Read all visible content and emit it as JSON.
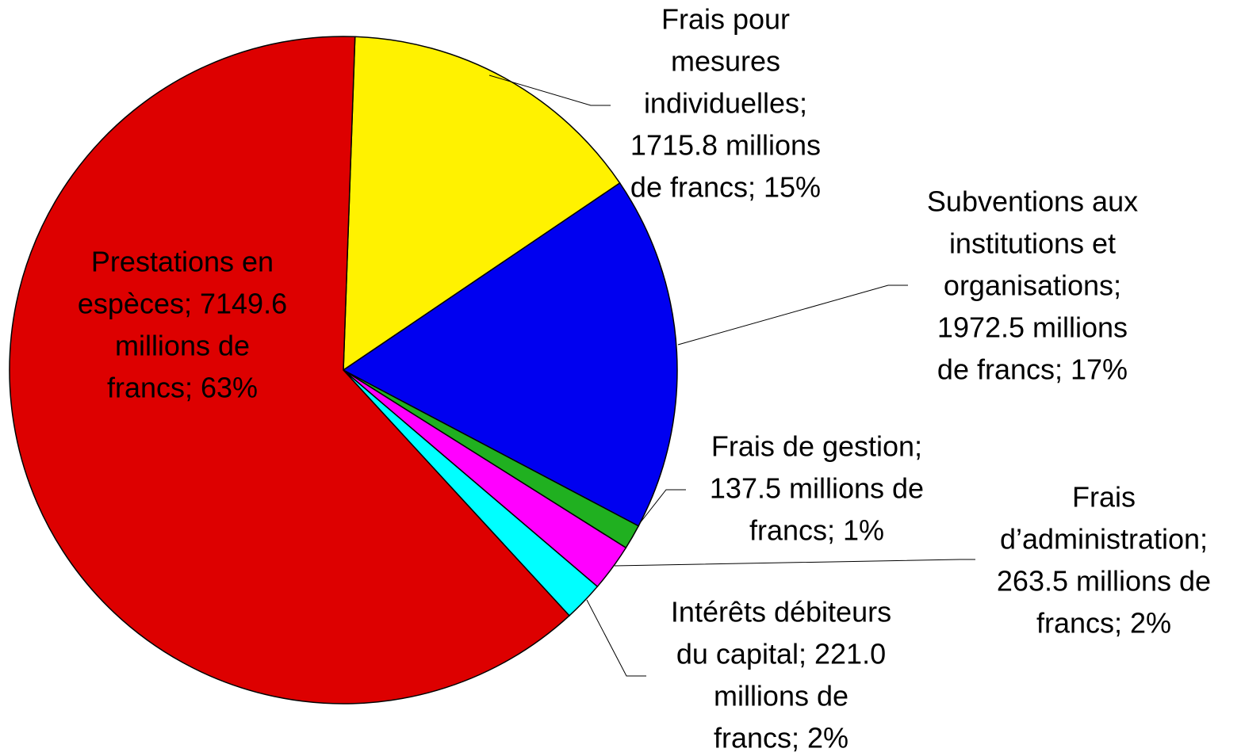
{
  "chart_data": {
    "type": "pie",
    "values": [
      1715.8,
      1972.5,
      137.5,
      263.5,
      221.0,
      7149.6
    ],
    "value_labels": [
      [
        "Frais pour",
        "mesures",
        "individuelles;",
        "1715.8 millions",
        "de francs; 15%"
      ],
      [
        "Subventions aux",
        "institutions et",
        "organisations;",
        "1972.5 millions",
        "de francs; 17%"
      ],
      [
        "Frais de gestion;",
        "137.5 millions de",
        "francs; 1%"
      ],
      [
        "Frais",
        "d’administration;",
        "263.5 millions de",
        "francs; 2%"
      ],
      [
        "Intérêts débiteurs",
        "du capital; 221.0",
        "millions de",
        "francs; 2%"
      ],
      [
        "Prestations en",
        "espèces; 7149.6",
        "millions de",
        "francs; 63%"
      ]
    ],
    "colors": [
      "#fff200",
      "#0000f0",
      "#20b020",
      "#ff00ff",
      "#00ffff",
      "#dd0000"
    ]
  }
}
